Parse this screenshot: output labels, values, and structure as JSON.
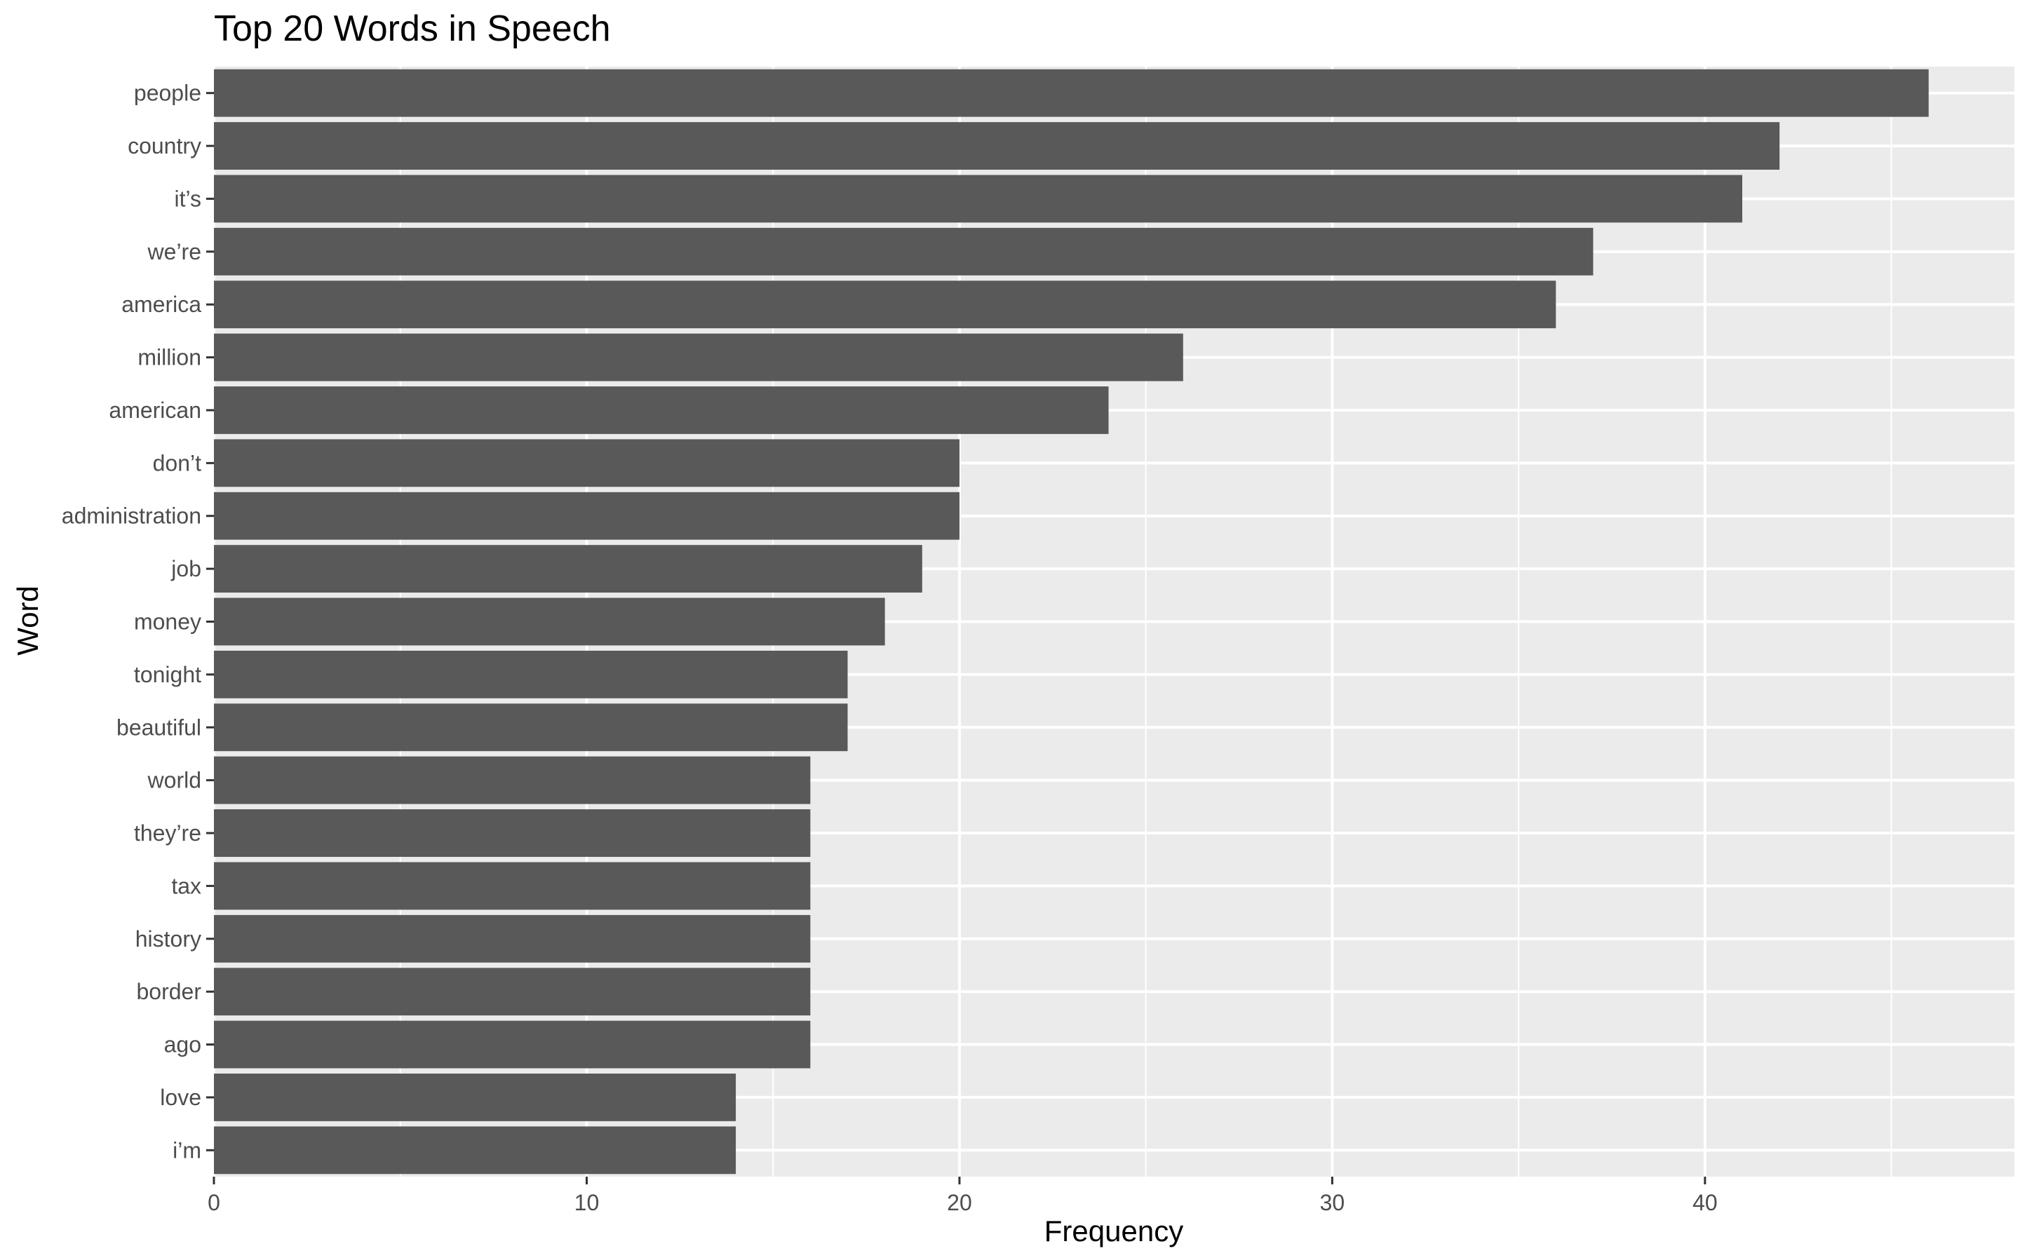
{
  "chart_data": {
    "type": "bar",
    "orientation": "horizontal",
    "title": "Top 20 Words in Speech",
    "xlabel": "Frequency",
    "ylabel": "Word",
    "categories": [
      "people",
      "country",
      "it’s",
      "we’re",
      "america",
      "million",
      "american",
      "don’t",
      "administration",
      "job",
      "money",
      "tonight",
      "beautiful",
      "world",
      "they’re",
      "tax",
      "history",
      "border",
      "ago",
      "love",
      "i’m"
    ],
    "values": [
      46,
      42,
      41,
      37,
      36,
      26,
      24,
      20,
      20,
      19,
      18,
      17,
      17,
      16,
      16,
      16,
      16,
      16,
      16,
      14,
      14
    ],
    "xlim": [
      0,
      48.3
    ],
    "xticks": [
      0,
      10,
      20,
      30,
      40
    ],
    "grid": true,
    "bar_color": "#595959",
    "panel_color": "#ebebeb",
    "grid_color": "#ffffff"
  }
}
